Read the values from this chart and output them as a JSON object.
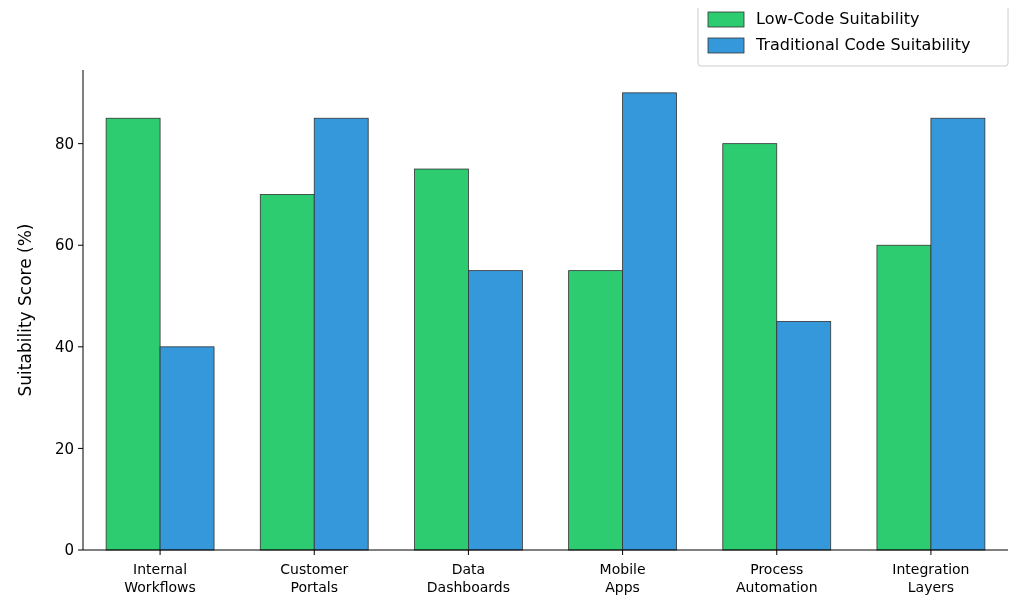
{
  "chart_data": {
    "type": "bar",
    "ylabel": "Suitability Score (%)",
    "categories": [
      "Internal\nWorkflows",
      "Customer\nPortals",
      "Data\nDashboards",
      "Mobile\nApps",
      "Process\nAutomation",
      "Integration\nLayers"
    ],
    "series": [
      {
        "name": "Low-Code Suitability",
        "color": "#2ecc71",
        "values": [
          85,
          70,
          75,
          55,
          80,
          60
        ]
      },
      {
        "name": "Traditional Code Suitability",
        "color": "#3498db",
        "values": [
          40,
          85,
          55,
          90,
          45,
          85
        ]
      }
    ],
    "ylim": [
      0,
      94.5
    ],
    "yticks": [
      0,
      20,
      40,
      60,
      80
    ],
    "legend": "top right"
  }
}
